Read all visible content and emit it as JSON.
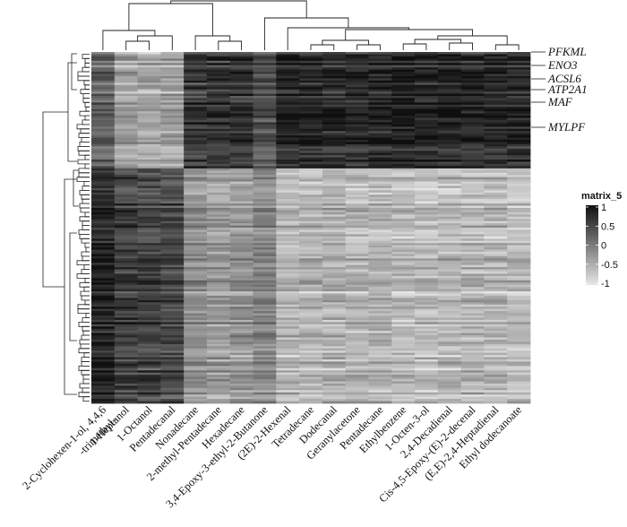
{
  "chart_data": {
    "type": "heatmap",
    "legend_title": "matrix_5",
    "color_scale": {
      "min": -1,
      "max": 1,
      "low_color": "#e6e6e6",
      "high_color": "#0f0f0f",
      "ticks": [
        "1",
        "0.5",
        "0",
        "-0.5",
        "-1"
      ]
    },
    "columns": [
      {
        "label": "2-Cyclohexen-1-ol, 4,4,6",
        "label2": "-trimethyl-"
      },
      {
        "label": "1-Heptanol"
      },
      {
        "label": "1-Octanol"
      },
      {
        "label": "Pentadecanal"
      },
      {
        "label": "Nonadecane"
      },
      {
        "label": "2-methyl-Pentadecane"
      },
      {
        "label": "Hexadecane"
      },
      {
        "label": "3,4-Epoxy-3-ethyl-2-Butanone"
      },
      {
        "label": "(2E)-2-Hexenal"
      },
      {
        "label": "Tetradecane"
      },
      {
        "label": "Dodecanal"
      },
      {
        "label": "Geranylacetone"
      },
      {
        "label": "Pentadecane"
      },
      {
        "label": "Ethylbenzene"
      },
      {
        "label": "1-Octen-3-ol"
      },
      {
        "label": "2,4-Decadienal"
      },
      {
        "label": "Cis-4,5-Epoxy-(E)-2-decenal"
      },
      {
        "label": "(E,E)-2,4-Heptadienal"
      },
      {
        "label": "Ethyl dodecanoate"
      }
    ],
    "highlighted_genes": [
      "PFKML",
      "ENO3",
      "ACSL6",
      "ATP2A1",
      "MAF",
      "MYLPF"
    ],
    "row_blocks": [
      {
        "name": "upper",
        "values": [
          0.2,
          -0.35,
          -0.45,
          -0.4,
          0.55,
          0.6,
          0.6,
          0.3,
          0.75,
          0.75,
          0.72,
          0.7,
          0.72,
          0.78,
          0.75,
          0.75,
          0.7,
          0.72,
          0.72
        ]
      },
      {
        "name": "lower",
        "values": [
          0.8,
          0.55,
          0.5,
          0.45,
          -0.2,
          -0.3,
          -0.25,
          -0.1,
          -0.55,
          -0.55,
          -0.5,
          -0.55,
          -0.5,
          -0.6,
          -0.6,
          -0.55,
          -0.55,
          -0.55,
          -0.6
        ]
      }
    ]
  }
}
